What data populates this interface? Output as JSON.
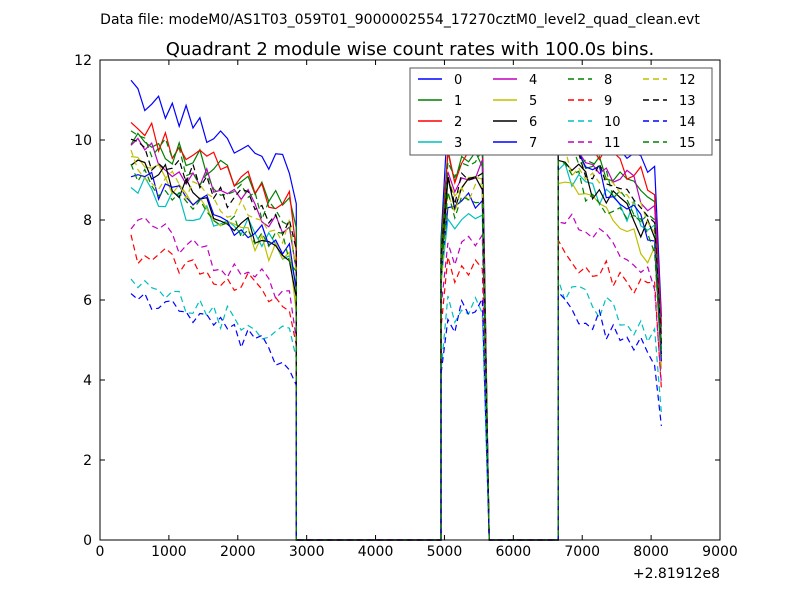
{
  "header": {
    "data_file": "Data file: modeM0/AS1T03_059T01_9000002554_17270cztM0_level2_quad_clean.evt"
  },
  "chart_data": {
    "type": "line",
    "title": "Quadrant 2 module wise count rates with 100.0s bins.",
    "xlabel": "",
    "ylabel": "",
    "xlim": [
      0,
      9000
    ],
    "ylim": [
      0,
      12
    ],
    "x_offset_label": "+2.81912e8",
    "x_ticks": [
      "0",
      "1000",
      "2000",
      "3000",
      "4000",
      "5000",
      "6000",
      "7000",
      "8000",
      "9000"
    ],
    "y_ticks": [
      "0",
      "2",
      "4",
      "6",
      "8",
      "10",
      "12"
    ],
    "legend_position": "top-right",
    "segments": [
      {
        "start": 450,
        "count": 25
      },
      {
        "start": 4950,
        "count": 7
      },
      {
        "start": 6650,
        "count": 16
      }
    ],
    "gaps": [
      {
        "from": 2850,
        "to": 4950
      },
      {
        "from": 5550,
        "to": 6650
      }
    ],
    "series": [
      {
        "name": "0",
        "color": "#0000ff",
        "style": "solid",
        "base": [
          11.2,
          9.2,
          10.6,
          9.0
        ]
      },
      {
        "name": "1",
        "color": "#008000",
        "style": "solid",
        "base": [
          10.2,
          8.3,
          10.0,
          8.6
        ]
      },
      {
        "name": "2",
        "color": "#ff0000",
        "style": "solid",
        "base": [
          10.4,
          8.3,
          10.6,
          8.7
        ]
      },
      {
        "name": "3",
        "color": "#00bfbf",
        "style": "solid",
        "base": [
          8.9,
          7.2,
          9.4,
          7.7
        ]
      },
      {
        "name": "4",
        "color": "#bf00bf",
        "style": "solid",
        "base": [
          9.9,
          7.8,
          10.2,
          8.3
        ]
      },
      {
        "name": "5",
        "color": "#bfbf00",
        "style": "solid",
        "base": [
          9.5,
          6.8,
          9.0,
          6.9
        ]
      },
      {
        "name": "6",
        "color": "#000000",
        "style": "solid",
        "base": [
          9.6,
          7.1,
          9.5,
          7.5
        ]
      },
      {
        "name": "7",
        "color": "#0000ff",
        "style": "solid",
        "base": [
          9.2,
          7.2,
          10.3,
          7.2
        ]
      },
      {
        "name": "8",
        "color": "#008000",
        "style": "dashed",
        "base": [
          10.2,
          7.8,
          9.8,
          7.9
        ]
      },
      {
        "name": "9",
        "color": "#ff0000",
        "style": "dashed",
        "base": [
          7.3,
          6.0,
          7.2,
          6.1
        ]
      },
      {
        "name": "10",
        "color": "#00bfbf",
        "style": "dashed",
        "base": [
          6.3,
          5.0,
          6.3,
          5.1
        ]
      },
      {
        "name": "11",
        "color": "#bf00bf",
        "style": "dashed",
        "base": [
          8.0,
          6.1,
          8.2,
          6.3
        ]
      },
      {
        "name": "12",
        "color": "#bfbf00",
        "style": "dashed",
        "base": [
          9.4,
          7.6,
          9.6,
          7.8
        ]
      },
      {
        "name": "13",
        "color": "#000000",
        "style": "dashed",
        "base": [
          9.8,
          7.8,
          9.9,
          7.9
        ]
      },
      {
        "name": "14",
        "color": "#0000ff",
        "style": "dashed",
        "base": [
          6.2,
          4.4,
          6.0,
          4.6
        ]
      },
      {
        "name": "15",
        "color": "#008000",
        "style": "dashed",
        "base": [
          9.1,
          7.2,
          9.3,
          7.4
        ]
      }
    ]
  }
}
